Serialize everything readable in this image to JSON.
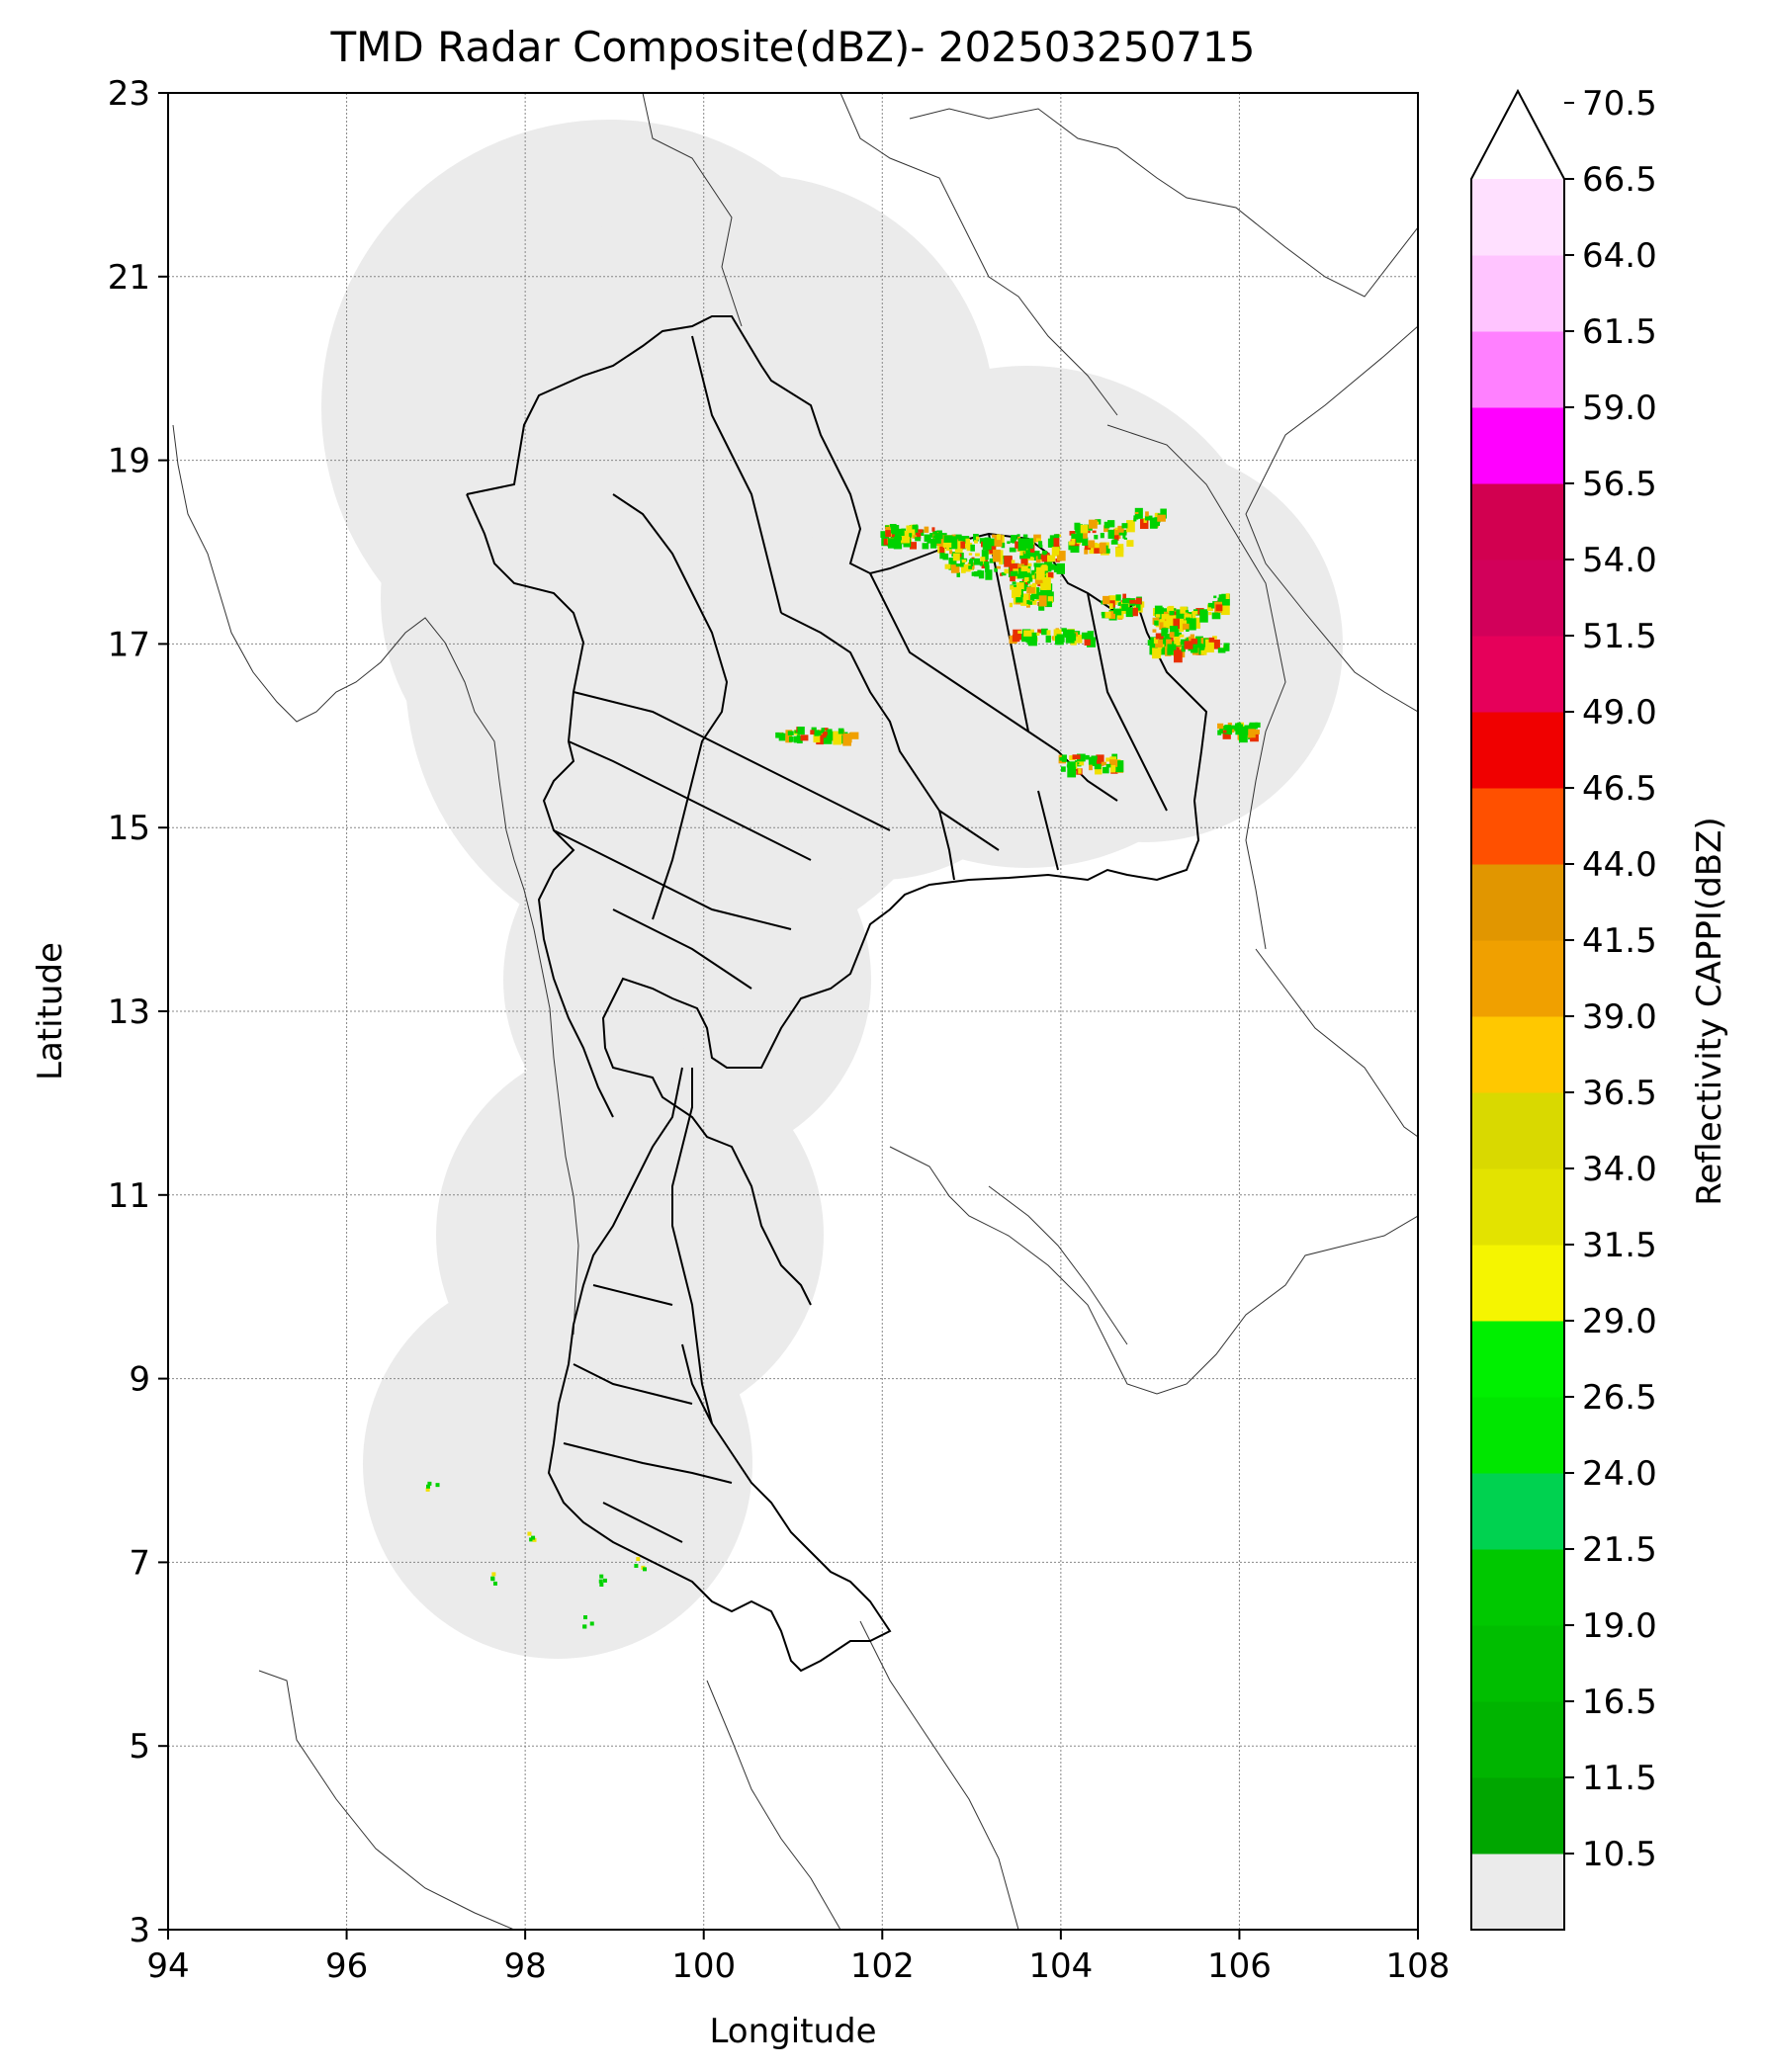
{
  "title": "TMD Radar Composite(dBZ)- 202503250715",
  "axes": {
    "xlabel": "Longitude",
    "ylabel": "Latitude",
    "xticks": [
      "94",
      "96",
      "98",
      "100",
      "102",
      "104",
      "106",
      "108"
    ],
    "yticks": [
      "3",
      "5",
      "7",
      "9",
      "11",
      "13",
      "15",
      "17",
      "19",
      "21",
      "23"
    ],
    "xlim": [
      94,
      108
    ],
    "ylim": [
      3,
      23
    ]
  },
  "colorbar": {
    "label": "Reflectivity CAPPI(dBZ)",
    "ticks": [
      "10.5",
      "11.5",
      "16.5",
      "19.0",
      "21.5",
      "24.0",
      "26.5",
      "29.0",
      "31.5",
      "34.0",
      "36.5",
      "39.0",
      "41.5",
      "44.0",
      "46.5",
      "49.0",
      "51.5",
      "54.0",
      "56.5",
      "59.0",
      "61.5",
      "64.0",
      "66.5",
      "70.5"
    ],
    "colors": [
      "#ebebeb",
      "#00a600",
      "#00b400",
      "#00be00",
      "#00c800",
      "#00d250",
      "#00e600",
      "#00f000",
      "#f5f500",
      "#e3e300",
      "#d9d900",
      "#ffc800",
      "#f0a000",
      "#e19600",
      "#ff5000",
      "#f00000",
      "#e6005a",
      "#d2005a",
      "#d20050",
      "#ff00ff",
      "#ff80ff",
      "#ffc4ff",
      "#ffe0ff"
    ]
  },
  "coverage_color": "#ebebeb",
  "echo_colors": {
    "green": "#00d200",
    "yellow": "#f0e000",
    "orange": "#f0a000",
    "red": "#e83000"
  }
}
